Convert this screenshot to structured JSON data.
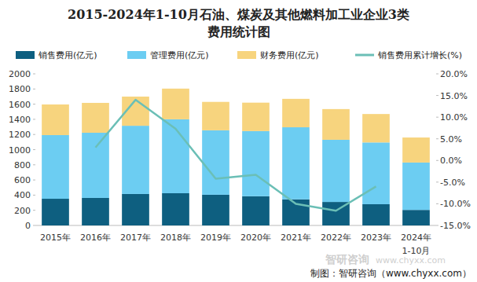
{
  "chart_data": {
    "type": "bar",
    "title": [
      "2015-2024年1-10月石油、煤炭及其他燃料加工业企业3类",
      "费用统计图"
    ],
    "categories": [
      "2015年",
      "2016年",
      "2017年",
      "2018年",
      "2019年",
      "2020年",
      "2021年",
      "2022年",
      "2023年",
      "2024年\n1-10月"
    ],
    "stacked": true,
    "grid": false,
    "legend": "top",
    "series": [
      {
        "name": "销售费用(亿元)",
        "color": "#0e5f80",
        "type": "bar",
        "values": [
          352,
          363,
          415,
          425,
          405,
          385,
          345,
          310,
          280,
          205
        ]
      },
      {
        "name": "管理费用(亿元)",
        "color": "#6ccdf2",
        "type": "bar",
        "values": [
          840,
          860,
          900,
          975,
          850,
          860,
          950,
          820,
          815,
          625
        ]
      },
      {
        "name": "财务费用(亿元)",
        "color": "#f7d47e",
        "type": "bar",
        "values": [
          404,
          394,
          385,
          405,
          375,
          375,
          375,
          405,
          375,
          330
        ]
      },
      {
        "name": "销售费用累计增长(%)",
        "color": "#6bbfb6",
        "type": "line",
        "axis": "y2",
        "values": [
          null,
          3.0,
          14.0,
          7.3,
          -4.2,
          -3.3,
          -10.0,
          -11.6,
          -6.0,
          null
        ]
      }
    ],
    "ylim": [
      0,
      2000
    ],
    "yticks": [
      0,
      200,
      400,
      600,
      800,
      1000,
      1200,
      1400,
      1600,
      1800,
      2000
    ],
    "y2lim": [
      -15,
      20
    ],
    "y2ticks": [
      {
        "value": -15,
        "label": "-15.0%"
      },
      {
        "value": -10,
        "label": "-10.0%"
      },
      {
        "value": -5,
        "label": "-5.0%"
      },
      {
        "value": 0,
        "label": "0.0%"
      },
      {
        "value": 5,
        "label": "5.0%"
      },
      {
        "value": 10,
        "label": "10.0%"
      },
      {
        "value": 15,
        "label": "15.0%"
      },
      {
        "value": 20,
        "label": "20.0%"
      }
    ],
    "annotations": [
      "制图：智研咨询（www.chyxx.com）",
      "智研咨询",
      "www.chyxx.com"
    ]
  }
}
